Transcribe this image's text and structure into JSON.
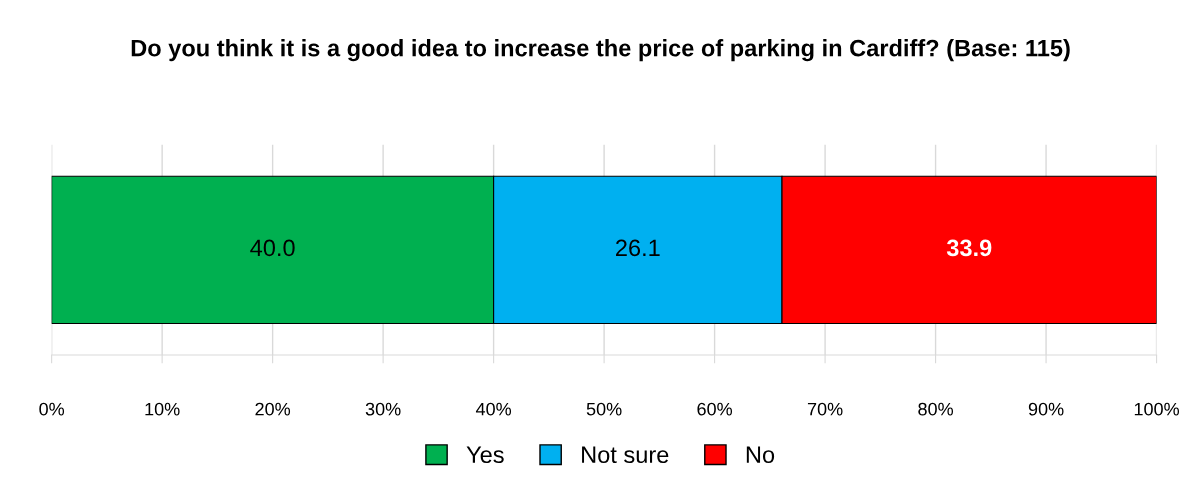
{
  "chart_data": {
    "type": "bar",
    "orientation": "horizontal",
    "stacked": true,
    "title": "Do you think it is a good idea to increase the price of parking in Cardiff? (Base: 115)",
    "categories": [
      null
    ],
    "series": [
      {
        "name": "Yes",
        "color": "#00b050",
        "values": [
          40.0
        ],
        "value_labels": [
          "40.0"
        ]
      },
      {
        "name": "Not sure",
        "color": "#00b0f0",
        "values": [
          26.1
        ],
        "value_labels": [
          "26.1"
        ]
      },
      {
        "name": "No",
        "color": "#ff0000",
        "values": [
          33.9
        ],
        "value_labels": [
          "33.9"
        ]
      }
    ],
    "xlim": [
      0,
      100
    ],
    "xticks": [
      {
        "value": 0,
        "label": "0%"
      },
      {
        "value": 10,
        "label": "10%"
      },
      {
        "value": 20,
        "label": "20%"
      },
      {
        "value": 30,
        "label": "30%"
      },
      {
        "value": 40,
        "label": "40%"
      },
      {
        "value": 50,
        "label": "50%"
      },
      {
        "value": 60,
        "label": "60%"
      },
      {
        "value": 70,
        "label": "70%"
      },
      {
        "value": 80,
        "label": "80%"
      },
      {
        "value": 90,
        "label": "90%"
      },
      {
        "value": 100,
        "label": "100%"
      }
    ],
    "grid": "x",
    "legend": "bottom"
  }
}
